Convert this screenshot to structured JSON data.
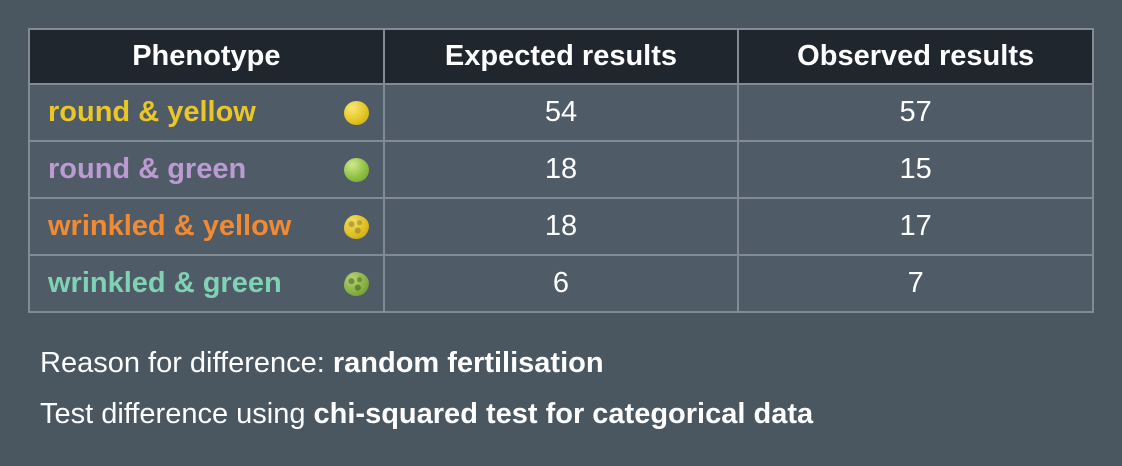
{
  "colors": {
    "background": "#4a5660",
    "header_bg": "#20262d",
    "row_bg": "#4f5b66",
    "border": "#828b93",
    "row_label_yellow": "#e9c62a",
    "row_label_purple": "#bb9bd2",
    "row_label_orange": "#f18a33",
    "row_label_teal": "#7fd2b4",
    "text": "#ffffff"
  },
  "table": {
    "headers": {
      "phenotype": "Phenotype",
      "expected": "Expected results",
      "observed": "Observed results"
    },
    "rows": [
      {
        "phenotype": "round & yellow",
        "icon": "round-yellow-pea",
        "expected": "54",
        "observed": "57"
      },
      {
        "phenotype": "round & green",
        "icon": "round-green-pea",
        "expected": "18",
        "observed": "15"
      },
      {
        "phenotype": "wrinkled & yellow",
        "icon": "wrinkled-yellow-pea",
        "expected": "18",
        "observed": "17"
      },
      {
        "phenotype": "wrinkled & green",
        "icon": "wrinkled-green-pea",
        "expected": "6",
        "observed": "7"
      }
    ]
  },
  "footer": {
    "reason_prefix": "Reason for difference: ",
    "reason_bold": "random fertilisation",
    "test_prefix": "Test difference using ",
    "test_bold": "chi-squared test for categorical data"
  },
  "chart_data": {
    "type": "table",
    "title": "",
    "columns": [
      "Phenotype",
      "Expected results",
      "Observed results"
    ],
    "rows": [
      [
        "round & yellow",
        54,
        57
      ],
      [
        "round & green",
        18,
        15
      ],
      [
        "wrinkled & yellow",
        18,
        17
      ],
      [
        "wrinkled & green",
        6,
        7
      ]
    ],
    "annotations": [
      "Reason for difference: random fertilisation",
      "Test difference using chi-squared test for categorical data"
    ]
  }
}
